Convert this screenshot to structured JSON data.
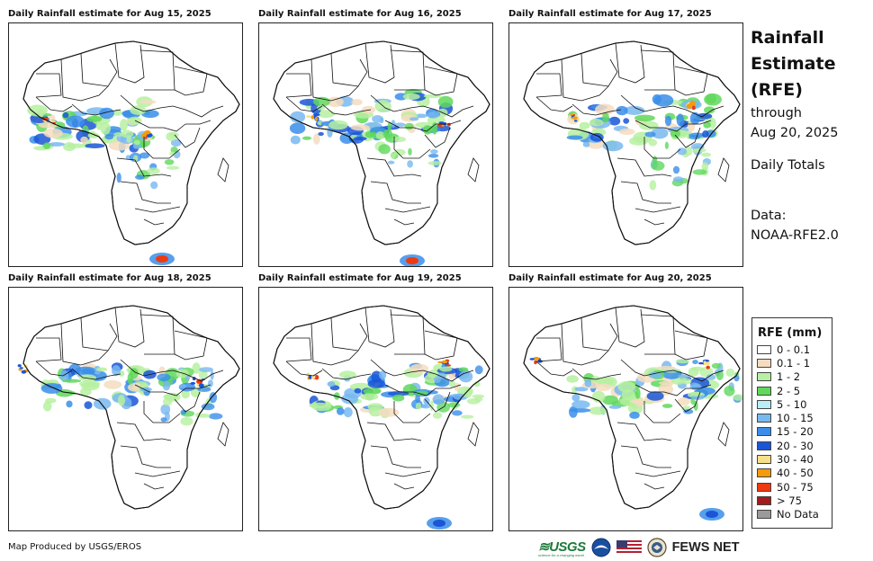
{
  "panels": [
    {
      "title": "Daily Rainfall estimate for Aug 15, 2025",
      "day": 15
    },
    {
      "title": "Daily Rainfall estimate for Aug 16, 2025",
      "day": 16
    },
    {
      "title": "Daily Rainfall estimate for Aug 17, 2025",
      "day": 17
    },
    {
      "title": "Daily Rainfall estimate for Aug 18, 2025",
      "day": 18
    },
    {
      "title": "Daily Rainfall estimate for Aug 19, 2025",
      "day": 19
    },
    {
      "title": "Daily Rainfall estimate for Aug 20, 2025",
      "day": 20
    }
  ],
  "side": {
    "title_line1": "Rainfall",
    "title_line2": "Estimate",
    "title_line3": "(RFE)",
    "through": "through",
    "date": "Aug 20, 2025",
    "totals": "Daily Totals",
    "data_label": "Data:",
    "data_source": "NOAA-RFE2.0"
  },
  "legend": {
    "title": "RFE (mm)",
    "items": [
      {
        "label": "0 - 0.1",
        "color": "#ffffff"
      },
      {
        "label": "0.1 - 1",
        "color": "#f5dcc0"
      },
      {
        "label": "1 - 2",
        "color": "#b6f0a0"
      },
      {
        "label": "2 - 5",
        "color": "#5fd85c"
      },
      {
        "label": "5 - 10",
        "color": "#b8eef6"
      },
      {
        "label": "10 - 15",
        "color": "#78b8f0"
      },
      {
        "label": "15 - 20",
        "color": "#3a8eea"
      },
      {
        "label": "20 - 30",
        "color": "#1a56d6"
      },
      {
        "label": "30 - 40",
        "color": "#f7e08a"
      },
      {
        "label": "40 - 50",
        "color": "#f59a0a"
      },
      {
        "label": "50 - 75",
        "color": "#ee3a10"
      },
      {
        "label": "> 75",
        "color": "#a51b1b"
      },
      {
        "label": "No Data",
        "color": "#9a9a9a"
      }
    ]
  },
  "footer": {
    "credit": "Map Produced by USGS/EROS",
    "usgs": "≋USGS",
    "usgs_tagline": "science for a changing world",
    "fews": "FEWS NET"
  }
}
